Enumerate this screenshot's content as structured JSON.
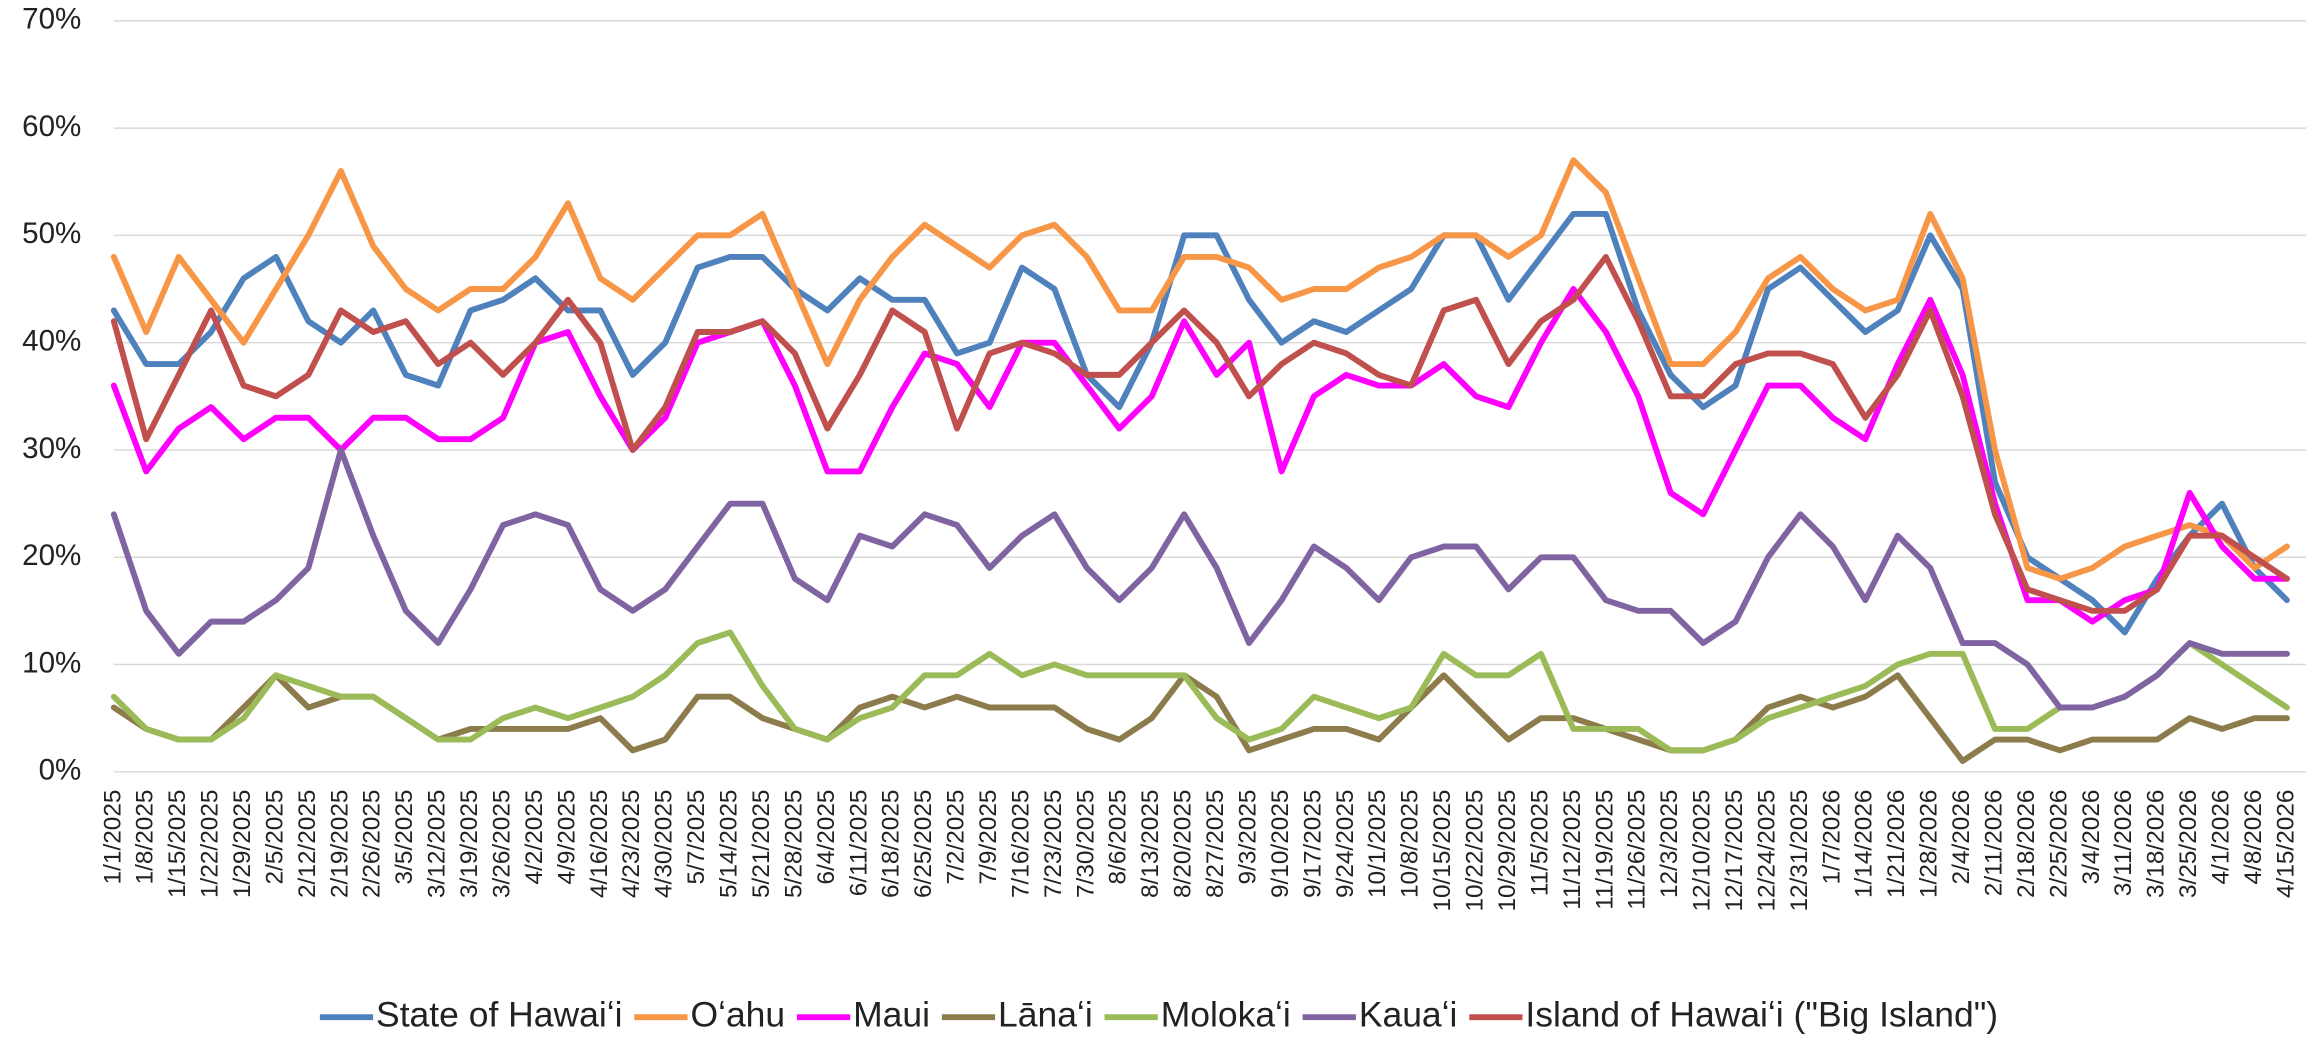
{
  "chart_data": {
    "type": "line",
    "categories": [
      "1/1/2025",
      "1/8/2025",
      "1/15/2025",
      "1/22/2025",
      "1/29/2025",
      "2/5/2025",
      "2/12/2025",
      "2/19/2025",
      "2/26/2025",
      "3/5/2025",
      "3/12/2025",
      "3/19/2025",
      "3/26/2025",
      "4/2/2025",
      "4/9/2025",
      "4/16/2025",
      "4/23/2025",
      "4/30/2025",
      "5/7/2025",
      "5/14/2025",
      "5/21/2025",
      "5/28/2025",
      "6/4/2025",
      "6/11/2025",
      "6/18/2025",
      "6/25/2025",
      "7/2/2025",
      "7/9/2025",
      "7/16/2025",
      "7/23/2025",
      "7/30/2025",
      "8/6/2025",
      "8/13/2025",
      "8/20/2025",
      "8/27/2025",
      "9/3/2025",
      "9/10/2025",
      "9/17/2025",
      "9/24/2025",
      "10/1/2025",
      "10/8/2025",
      "10/15/2025",
      "10/22/2025",
      "10/29/2025",
      "11/5/2025",
      "11/12/2025",
      "11/19/2025",
      "11/26/2025",
      "12/3/2025",
      "12/10/2025",
      "12/17/2025",
      "12/24/2025",
      "12/31/2025",
      "1/7/2026",
      "1/14/2026",
      "1/21/2026",
      "1/28/2026",
      "2/4/2026",
      "2/11/2026",
      "2/18/2026",
      "2/25/2026",
      "3/4/2026",
      "3/11/2026",
      "3/18/2026",
      "3/25/2026",
      "4/1/2026",
      "4/8/2026",
      "4/15/2026"
    ],
    "series": [
      {
        "name": "State of Hawaiʻi",
        "color": "#4f81bd",
        "values": [
          43,
          38,
          38,
          41,
          46,
          48,
          42,
          40,
          43,
          37,
          36,
          43,
          44,
          46,
          43,
          43,
          37,
          40,
          47,
          48,
          48,
          45,
          43,
          46,
          44,
          44,
          39,
          40,
          47,
          45,
          37,
          34,
          40,
          50,
          50,
          44,
          40,
          42,
          41,
          43,
          45,
          50,
          50,
          44,
          48,
          52,
          52,
          43,
          37,
          34,
          36,
          45,
          47,
          44,
          41,
          43,
          50,
          45,
          27,
          20,
          18,
          16,
          13,
          18,
          22,
          25,
          19,
          16
        ]
      },
      {
        "name": "Oʻahu",
        "color": "#f79646",
        "values": [
          48,
          41,
          48,
          44,
          40,
          45,
          50,
          56,
          49,
          45,
          43,
          45,
          45,
          48,
          53,
          46,
          44,
          47,
          50,
          50,
          52,
          45,
          38,
          44,
          48,
          51,
          49,
          47,
          50,
          51,
          48,
          43,
          43,
          48,
          48,
          47,
          44,
          45,
          45,
          47,
          48,
          50,
          50,
          48,
          50,
          57,
          54,
          46,
          38,
          38,
          41,
          46,
          48,
          45,
          43,
          44,
          52,
          46,
          30,
          19,
          18,
          19,
          21,
          22,
          23,
          22,
          19,
          21
        ]
      },
      {
        "name": "Maui",
        "color": "#ff00ff",
        "values": [
          36,
          28,
          32,
          34,
          31,
          33,
          33,
          30,
          33,
          33,
          31,
          31,
          33,
          40,
          41,
          35,
          30,
          33,
          40,
          41,
          42,
          36,
          28,
          28,
          34,
          39,
          38,
          34,
          40,
          40,
          36,
          32,
          35,
          42,
          37,
          40,
          28,
          35,
          37,
          36,
          36,
          38,
          35,
          34,
          40,
          45,
          41,
          35,
          26,
          24,
          30,
          36,
          36,
          33,
          31,
          38,
          44,
          37,
          25,
          16,
          16,
          14,
          16,
          17,
          26,
          21,
          18,
          18
        ]
      },
      {
        "name": "Lānaʻi",
        "color": "#8c7b4b",
        "values": [
          6,
          4,
          3,
          3,
          6,
          9,
          6,
          7,
          7,
          5,
          3,
          4,
          4,
          4,
          4,
          5,
          2,
          3,
          7,
          7,
          5,
          4,
          3,
          6,
          7,
          6,
          7,
          6,
          6,
          6,
          4,
          3,
          5,
          9,
          7,
          2,
          3,
          4,
          4,
          3,
          6,
          9,
          6,
          3,
          5,
          5,
          4,
          3,
          2,
          2,
          3,
          6,
          7,
          6,
          7,
          9,
          5,
          1,
          3,
          3,
          2,
          3,
          3,
          3,
          5,
          4,
          5,
          5
        ]
      },
      {
        "name": "Molokaʻi",
        "color": "#9bbb59",
        "values": [
          7,
          4,
          3,
          3,
          5,
          9,
          8,
          7,
          7,
          5,
          3,
          3,
          5,
          6,
          5,
          6,
          7,
          9,
          12,
          13,
          8,
          4,
          3,
          5,
          6,
          9,
          9,
          11,
          9,
          10,
          9,
          9,
          9,
          9,
          5,
          3,
          4,
          7,
          6,
          5,
          6,
          11,
          9,
          9,
          11,
          4,
          4,
          4,
          2,
          2,
          3,
          5,
          6,
          7,
          8,
          10,
          11,
          11,
          4,
          4,
          6,
          6,
          7,
          9,
          12,
          10,
          8,
          6
        ]
      },
      {
        "name": "Kauaʻi",
        "color": "#8064a2",
        "values": [
          24,
          15,
          11,
          14,
          14,
          16,
          19,
          30,
          22,
          15,
          12,
          17,
          23,
          24,
          23,
          17,
          15,
          17,
          21,
          25,
          25,
          18,
          16,
          22,
          21,
          24,
          23,
          19,
          22,
          24,
          19,
          16,
          19,
          24,
          19,
          12,
          16,
          21,
          19,
          16,
          20,
          21,
          21,
          17,
          20,
          20,
          16,
          15,
          15,
          12,
          14,
          20,
          24,
          21,
          16,
          22,
          19,
          12,
          12,
          10,
          6,
          6,
          7,
          9,
          12,
          11,
          11,
          11
        ]
      },
      {
        "name": "Island of Hawaiʻi (\"Big Island\")",
        "color": "#c0504d",
        "values": [
          42,
          31,
          37,
          43,
          36,
          35,
          37,
          43,
          41,
          42,
          38,
          40,
          37,
          40,
          44,
          40,
          30,
          34,
          41,
          41,
          42,
          39,
          32,
          37,
          43,
          41,
          32,
          39,
          40,
          39,
          37,
          37,
          40,
          43,
          40,
          35,
          38,
          40,
          39,
          37,
          36,
          43,
          44,
          38,
          42,
          44,
          48,
          42,
          35,
          35,
          38,
          39,
          39,
          38,
          33,
          37,
          43,
          35,
          24,
          17,
          16,
          15,
          15,
          17,
          22,
          22,
          20,
          18
        ]
      }
    ],
    "ylim": [
      0,
      70
    ],
    "yticks": [
      {
        "value": 0,
        "label": "0%"
      },
      {
        "value": 10,
        "label": "10%"
      },
      {
        "value": 20,
        "label": "20%"
      },
      {
        "value": 30,
        "label": "30%"
      },
      {
        "value": 40,
        "label": "40%"
      },
      {
        "value": 50,
        "label": "50%"
      },
      {
        "value": 60,
        "label": "60%"
      },
      {
        "value": 70,
        "label": "70%"
      }
    ],
    "grid": true,
    "legend": "bottom"
  }
}
